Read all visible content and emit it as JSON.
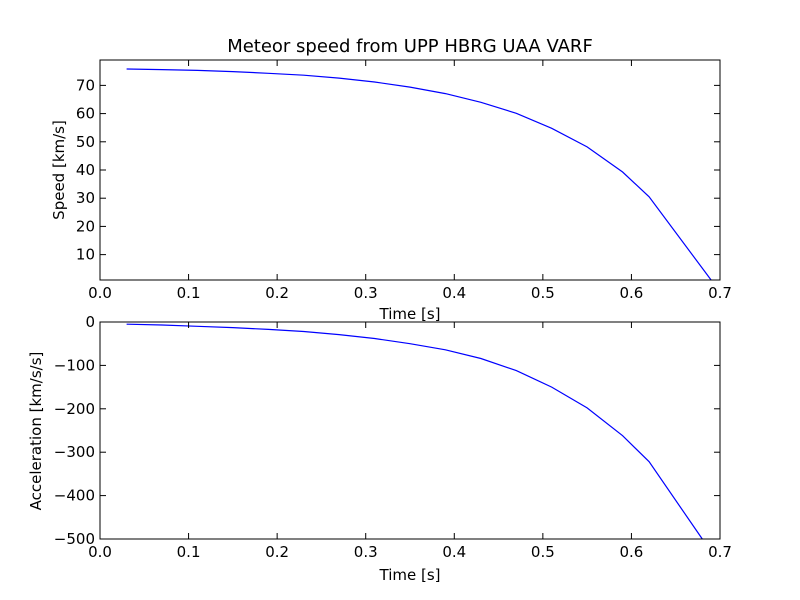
{
  "chart_data": [
    {
      "type": "line",
      "title": "Meteor speed from  UPP HBRG UAA VARF",
      "xlabel": "Time [s]",
      "ylabel": "Speed [km/s]",
      "xlim": [
        0.0,
        0.7
      ],
      "ylim": [
        1,
        79
      ],
      "xticks": [
        0.0,
        0.1,
        0.2,
        0.3,
        0.4,
        0.5,
        0.6,
        0.7
      ],
      "xtick_labels": [
        "0.0",
        "0.1",
        "0.2",
        "0.3",
        "0.4",
        "0.5",
        "0.6",
        "0.7"
      ],
      "yticks": [
        10,
        20,
        30,
        40,
        50,
        60,
        70
      ],
      "ytick_labels": [
        "10",
        "20",
        "30",
        "40",
        "50",
        "60",
        "70"
      ],
      "grid": false,
      "line_color": "#0000ff",
      "series": [
        {
          "x": [
            0.03,
            0.07,
            0.11,
            0.15,
            0.19,
            0.23,
            0.27,
            0.31,
            0.35,
            0.39,
            0.43,
            0.47,
            0.51,
            0.55,
            0.59,
            0.62,
            0.69
          ],
          "y": [
            75.8,
            75.6,
            75.3,
            74.9,
            74.3,
            73.6,
            72.6,
            71.2,
            69.4,
            67.1,
            64.0,
            60.1,
            54.8,
            48.2,
            39.3,
            30.5,
            1.0
          ]
        }
      ]
    },
    {
      "type": "line",
      "title": "",
      "xlabel": "Time [s]",
      "ylabel": "Acceleration [km/s/s]",
      "xlim": [
        0.0,
        0.7
      ],
      "ylim": [
        -500,
        0
      ],
      "xticks": [
        0.0,
        0.1,
        0.2,
        0.3,
        0.4,
        0.5,
        0.6,
        0.7
      ],
      "xtick_labels": [
        "0.0",
        "0.1",
        "0.2",
        "0.3",
        "0.4",
        "0.5",
        "0.6",
        "0.7"
      ],
      "yticks": [
        0,
        -100,
        -200,
        -300,
        -400,
        -500
      ],
      "ytick_labels": [
        "0",
        "−100",
        "−200",
        "−300",
        "−400",
        "−500"
      ],
      "grid": false,
      "line_color": "#0000ff",
      "series": [
        {
          "x": [
            0.03,
            0.07,
            0.11,
            0.15,
            0.19,
            0.23,
            0.27,
            0.31,
            0.35,
            0.39,
            0.43,
            0.47,
            0.51,
            0.55,
            0.59,
            0.62,
            0.68
          ],
          "y": [
            -5,
            -7,
            -10,
            -13,
            -17,
            -22,
            -29,
            -38,
            -50,
            -64,
            -84,
            -112,
            -150,
            -198,
            -262,
            -322,
            -500
          ]
        }
      ]
    }
  ]
}
